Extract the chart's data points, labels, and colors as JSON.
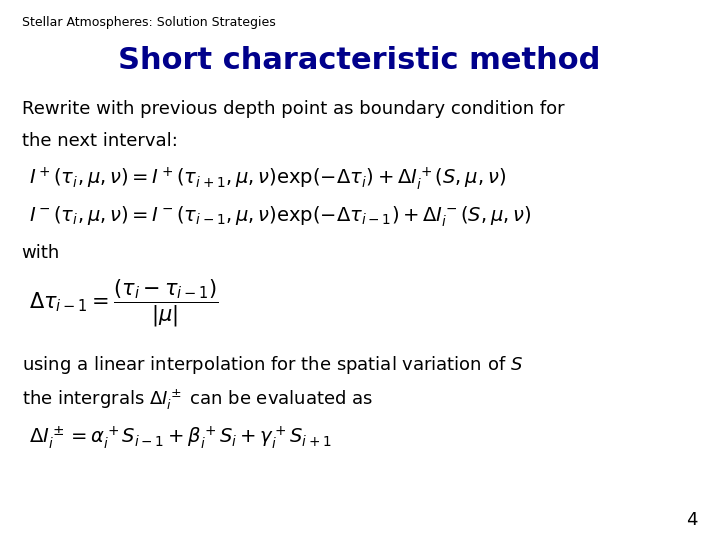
{
  "background_color": "#ffffff",
  "header_text": "Stellar Atmospheres: Solution Strategies",
  "header_fontsize": 9,
  "header_color": "#000000",
  "title_text": "Short characteristic method",
  "title_fontsize": 22,
  "title_color": "#00008B",
  "title_bold": true,
  "body_color": "#000000",
  "body_fontsize": 13,
  "eq_fontsize": 14,
  "page_number": "4",
  "line1": "Rewrite with previous depth point as boundary condition for",
  "line2": "the next interval:",
  "eq1": "$I^+(\\tau_i, \\mu, \\nu) = I^+(\\tau_{i+1}, \\mu, \\nu)\\exp\\!\\left(-\\Delta\\tau_i\\right) + \\Delta I_i^+(S, \\mu, \\nu)$",
  "eq2": "$I^-(\\tau_i, \\mu, \\nu) = I^-(\\tau_{i-1}, \\mu, \\nu)\\exp\\!\\left(-\\Delta\\tau_{i-1}\\right) + \\Delta I_i^-(S, \\mu, \\nu)$",
  "with_text": "with",
  "eq3": "$\\Delta\\tau_{i-1} = \\dfrac{\\left(\\tau_i - \\tau_{i-1}\\right)}{|\\mu|}$",
  "line3": "using a linear interpolation for the spatial variation of $S$",
  "line4": "the intergrals $\\Delta I_i^\\pm$ can be evaluated as",
  "eq4": "$\\Delta I_i^\\pm = \\alpha_i^+ S_{i-1} + \\beta_i^+ S_i + \\gamma_i^+ S_{i+1}$"
}
